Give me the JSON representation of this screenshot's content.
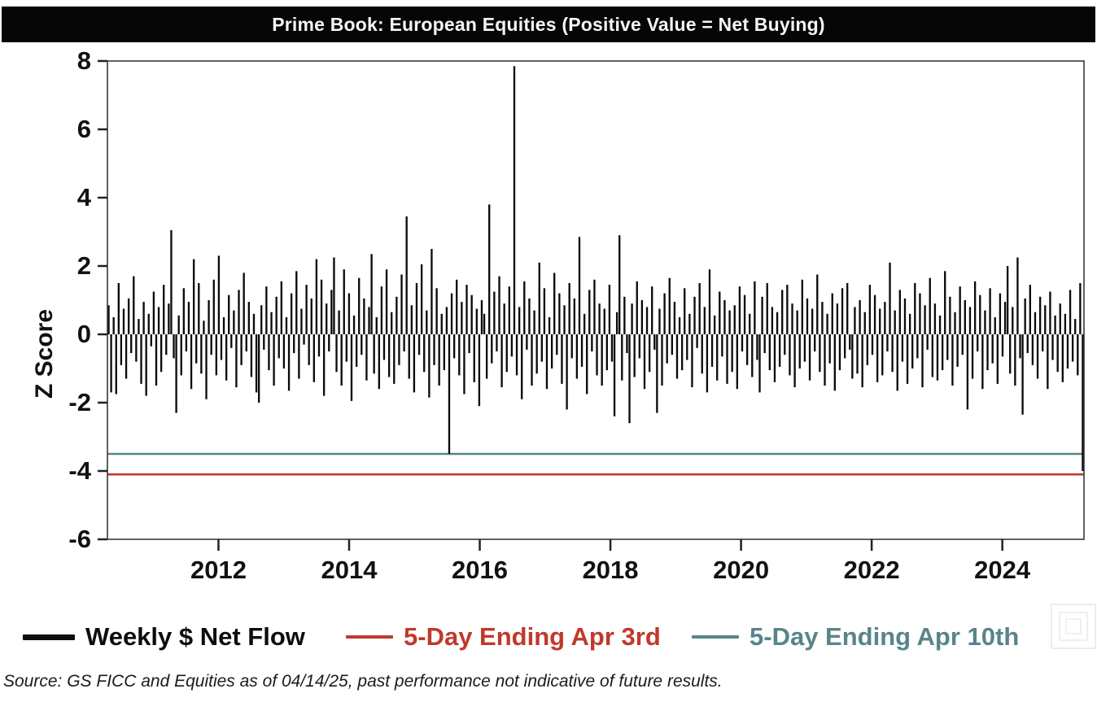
{
  "title": "Prime Book: European Equities (Positive Value = Net Buying)",
  "source_note": "Source: GS FICC and Equities as of 04/14/25, past performance not indicative of future results.",
  "legend": [
    {
      "label": "Weekly $ Net Flow",
      "color": "#0d0d0d",
      "swatch": "thick-line"
    },
    {
      "label": "5-Day Ending Apr 3rd",
      "color": "#c0392b",
      "swatch": "line"
    },
    {
      "label": "5-Day Ending Apr 10th",
      "color": "#57858a",
      "swatch": "line"
    }
  ],
  "chart_data": {
    "type": "bar",
    "title": "Prime Book: European Equities (Positive Value = Net Buying)",
    "xlabel": "",
    "ylabel": "Z Score",
    "ylim": [
      -6,
      8
    ],
    "y_ticks": [
      8,
      6,
      4,
      2,
      0,
      -2,
      -4,
      -6
    ],
    "x_ticks": [
      2012,
      2014,
      2016,
      2018,
      2020,
      2022,
      2024
    ],
    "x_range": [
      2010.3,
      2025.25
    ],
    "grid": false,
    "legend_position": "bottom",
    "series_name": "Weekly $ Net Flow",
    "bar_color": "#0a0a0a",
    "period_note": "weekly net flow z-scores, mid-2010 through mid-April 2025; notable extremes: +7.85 mid-2016, -3.5 mid-2015, final week approx -4.0",
    "values": [
      0.85,
      -1.7,
      0.5,
      -1.75,
      1.5,
      -0.9,
      0.75,
      -1.3,
      1.05,
      -0.55,
      1.7,
      -0.8,
      0.45,
      -1.45,
      0.95,
      -1.8,
      0.6,
      -0.35,
      1.25,
      -1.5,
      0.8,
      -1.1,
      1.45,
      -0.6,
      0.9,
      3.05,
      -0.7,
      -2.3,
      0.55,
      -1.2,
      1.35,
      -0.5,
      0.95,
      -1.6,
      2.2,
      -0.85,
      1.5,
      -1.15,
      0.4,
      -1.9,
      1.0,
      -0.6,
      1.6,
      -1.2,
      2.3,
      -0.75,
      0.5,
      -1.35,
      1.15,
      -0.4,
      0.7,
      -1.55,
      1.3,
      -0.9,
      1.8,
      -0.5,
      0.95,
      -1.25,
      0.6,
      -1.7,
      -2.0,
      0.85,
      -0.45,
      1.4,
      -1.05,
      0.65,
      -1.5,
      1.1,
      -0.7,
      1.55,
      -1.0,
      0.5,
      -1.65,
      1.2,
      -0.55,
      1.85,
      -1.3,
      0.75,
      -0.3,
      1.45,
      -0.9,
      1.05,
      -1.4,
      2.2,
      -0.65,
      1.6,
      -1.8,
      0.9,
      -0.5,
      1.3,
      2.25,
      -1.1,
      0.7,
      -1.5,
      1.9,
      -0.8,
      1.2,
      -1.95,
      0.55,
      -0.95,
      1.65,
      -0.6,
      1.05,
      -1.35,
      0.8,
      2.35,
      -1.15,
      0.5,
      -1.6,
      1.4,
      -0.75,
      1.9,
      -1.25,
      0.65,
      -1.45,
      1.1,
      -0.9,
      1.75,
      -0.5,
      3.45,
      -1.3,
      0.85,
      -1.7,
      1.5,
      -0.6,
      2.05,
      -1.1,
      0.7,
      -1.85,
      2.5,
      -0.9,
      1.35,
      -1.5,
      0.6,
      -1.05,
      0.8,
      -3.5,
      1.2,
      -0.7,
      1.6,
      -1.2,
      0.95,
      -1.75,
      1.45,
      -0.55,
      1.15,
      -1.4,
      0.75,
      -2.1,
      1.0,
      0.6,
      -1.3,
      3.8,
      -0.85,
      1.25,
      -0.5,
      1.7,
      -1.55,
      0.9,
      -1.1,
      1.4,
      -0.65,
      7.85,
      -1.2,
      0.8,
      -1.9,
      1.55,
      -0.45,
      1.05,
      -1.5,
      0.7,
      -1.15,
      2.1,
      -0.8,
      1.35,
      -1.6,
      0.5,
      -1.0,
      1.8,
      -0.6,
      1.2,
      -1.45,
      0.85,
      -2.2,
      1.5,
      -0.7,
      1.05,
      -1.3,
      2.85,
      -0.95,
      0.6,
      -1.75,
      1.3,
      -0.5,
      1.6,
      -1.2,
      0.9,
      -1.5,
      0.75,
      -1.05,
      1.45,
      -0.8,
      -2.4,
      0.65,
      2.9,
      -1.35,
      1.1,
      -0.55,
      -2.6,
      0.9,
      -1.25,
      1.55,
      -0.7,
      1.0,
      -1.6,
      0.8,
      -1.1,
      1.4,
      -0.45,
      -2.3,
      0.75,
      -1.5,
      1.2,
      -0.85,
      1.65,
      -0.6,
      0.95,
      -1.3,
      0.5,
      -1.05,
      1.35,
      -0.75,
      0.6,
      -1.55,
      1.1,
      -0.4,
      1.5,
      -1.15,
      0.8,
      -1.7,
      1.9,
      -0.95,
      0.55,
      -1.35,
      1.25,
      -0.65,
      1.0,
      -1.45,
      0.7,
      -1.1,
      0.85,
      -1.6,
      1.4,
      -0.5,
      1.15,
      -0.9,
      0.6,
      -1.25,
      1.55,
      -0.75,
      -1.7,
      1.1,
      -0.55,
      1.5,
      -1.05,
      0.8,
      -1.4,
      0.65,
      -0.95,
      1.3,
      -0.6,
      1.45,
      -1.2,
      0.9,
      -1.55,
      0.7,
      -1.0,
      1.6,
      -0.8,
      1.05,
      -1.35,
      0.75,
      -0.5,
      1.75,
      -1.1,
      0.95,
      -1.5,
      0.6,
      -0.85,
      1.2,
      -1.65,
      0.9,
      -1.05,
      1.35,
      -0.7,
      1.5,
      -0.45,
      -1.3,
      0.8,
      -1.15,
      1.0,
      -1.55,
      0.65,
      -0.9,
      1.45,
      -0.6,
      1.15,
      -1.4,
      0.75,
      -1.2,
      0.95,
      -0.5,
      2.1,
      -1.1,
      0.7,
      -1.65,
      1.3,
      -0.8,
      1.05,
      -1.45,
      0.6,
      -1.0,
      1.5,
      -0.7,
      1.2,
      -1.55,
      0.85,
      -0.45,
      1.65,
      -1.25,
      0.9,
      -1.35,
      0.55,
      -1.05,
      1.85,
      -0.75,
      1.1,
      -1.5,
      0.65,
      -0.95,
      1.4,
      -0.6,
      1.0,
      -2.2,
      0.8,
      -1.3,
      1.55,
      -0.5,
      1.15,
      -1.6,
      0.7,
      -1.05,
      1.35,
      -0.85,
      0.5,
      -1.45,
      1.2,
      -0.65,
      0.95,
      2.0,
      -1.15,
      0.8,
      -1.5,
      2.25,
      -0.7,
      -2.35,
      1.05,
      -0.55,
      1.45,
      -0.9,
      0.65,
      -1.3,
      1.1,
      -0.5,
      0.85,
      -1.6,
      1.25,
      -0.75,
      0.55,
      -1.1,
      0.9,
      -1.4,
      0.6,
      -1.0,
      1.3,
      -0.8,
      0.45,
      -1.2,
      1.5,
      -4.0
    ],
    "reference_lines": [
      {
        "label": "5-Day Ending Apr 3rd",
        "value": -4.1,
        "color": "#c0392b"
      },
      {
        "label": "5-Day Ending Apr 10th",
        "value": -3.5,
        "color": "#57858a"
      }
    ]
  }
}
